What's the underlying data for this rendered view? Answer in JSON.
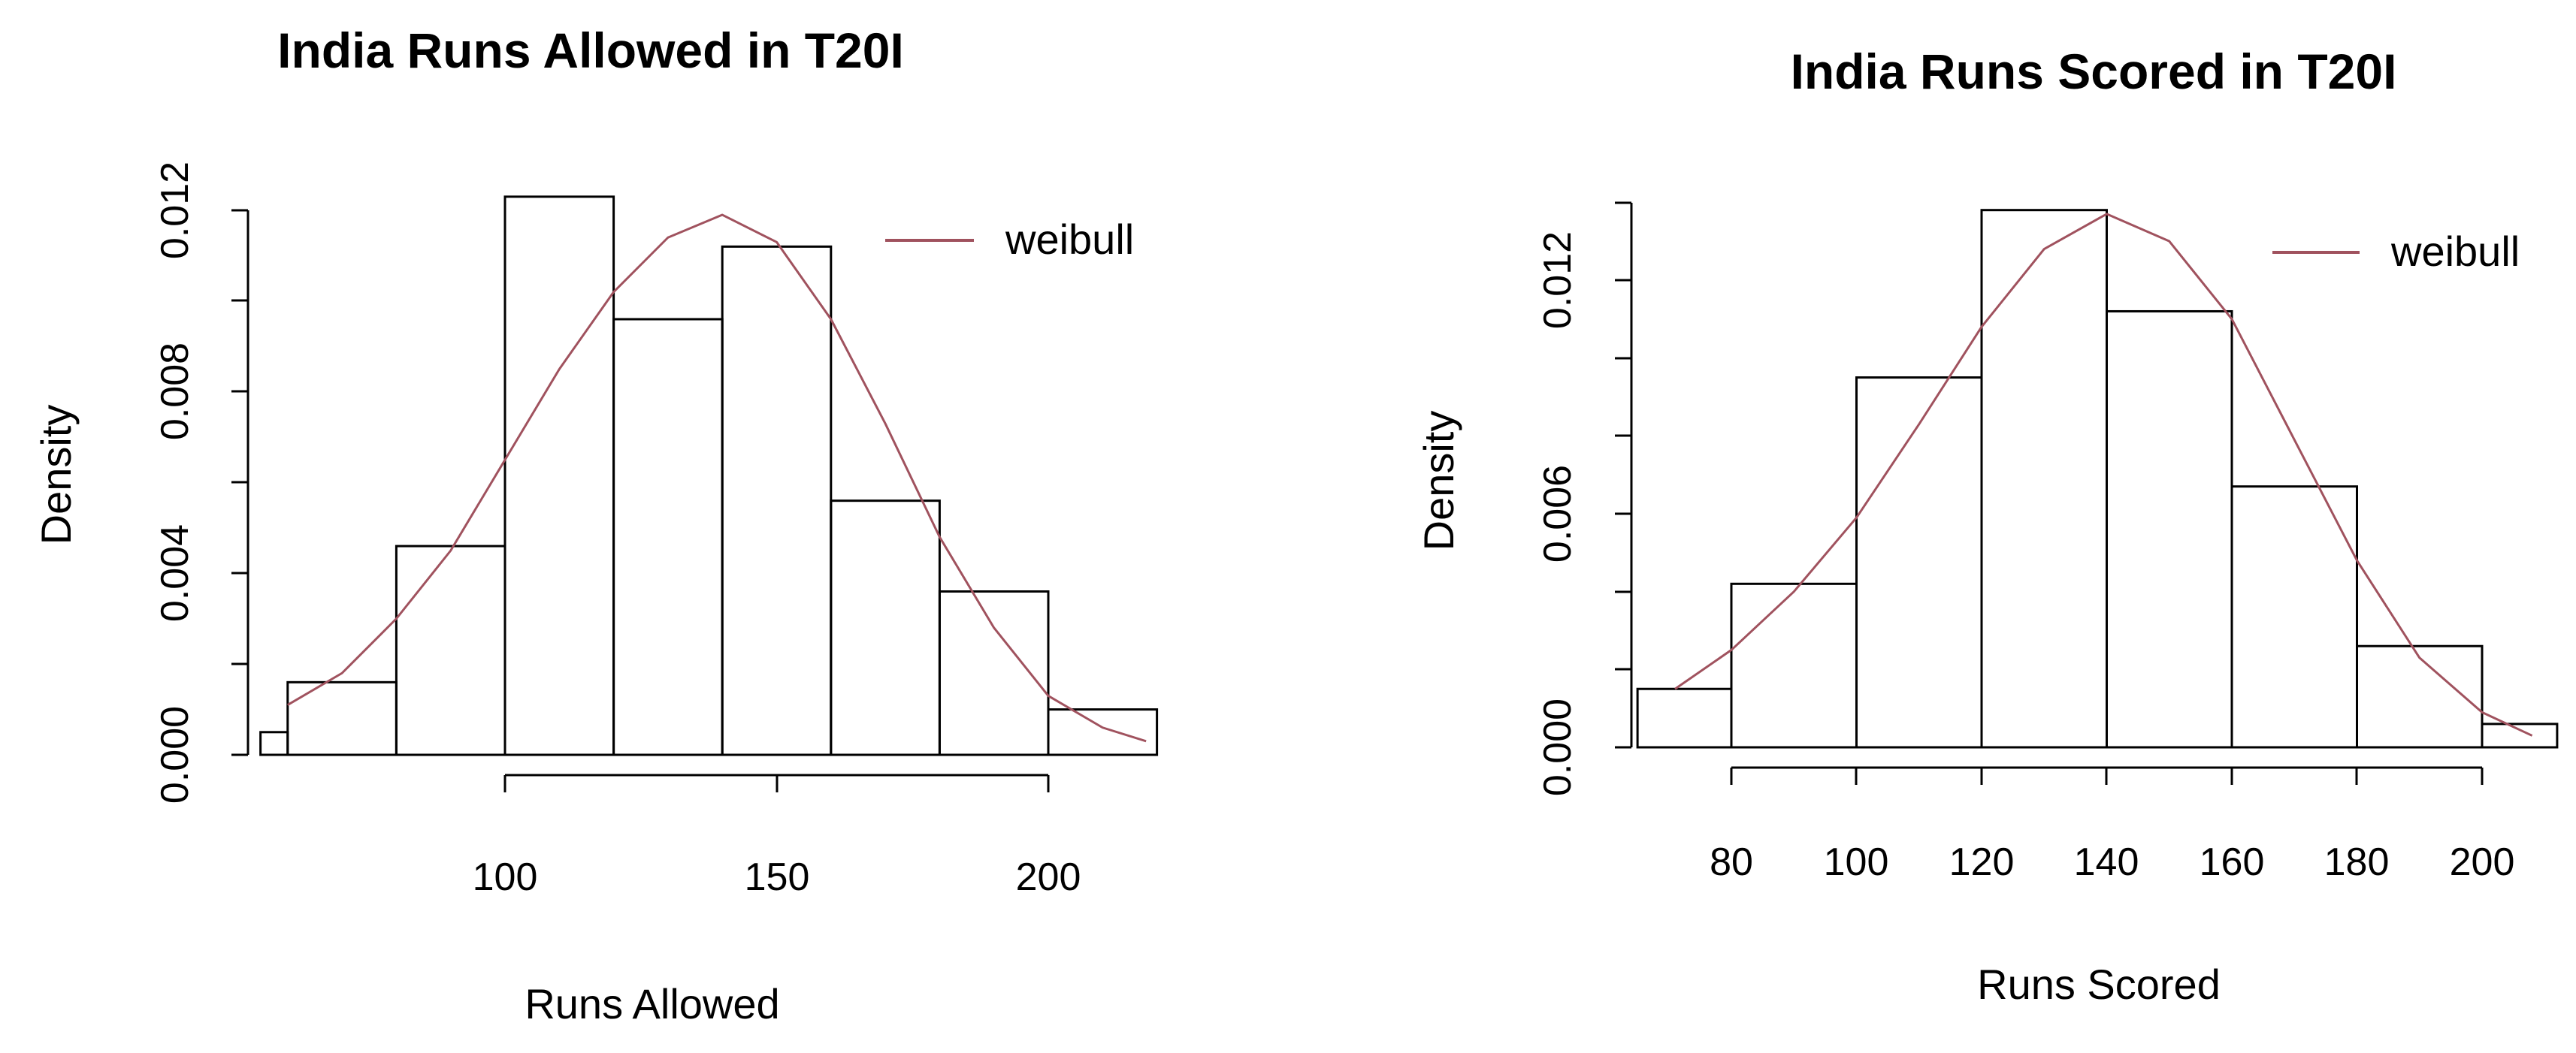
{
  "chart_data": [
    {
      "type": "bar",
      "title": "India Runs Allowed in T20I",
      "xlabel": "Runs Allowed",
      "ylabel": "Density",
      "bins": [
        {
          "from": 55,
          "to": 60,
          "density": 0.0005
        },
        {
          "from": 60,
          "to": 80,
          "density": 0.0016
        },
        {
          "from": 80,
          "to": 100,
          "density": 0.0046
        },
        {
          "from": 100,
          "to": 120,
          "density": 0.0123
        },
        {
          "from": 120,
          "to": 140,
          "density": 0.0096
        },
        {
          "from": 140,
          "to": 160,
          "density": 0.0112
        },
        {
          "from": 160,
          "to": 180,
          "density": 0.0056
        },
        {
          "from": 180,
          "to": 200,
          "density": 0.0036
        },
        {
          "from": 200,
          "to": 220,
          "density": 0.001
        }
      ],
      "series": [
        {
          "name": "weibull",
          "x": [
            60,
            70,
            80,
            90,
            100,
            110,
            120,
            130,
            140,
            150,
            160,
            170,
            180,
            190,
            200,
            210,
            218
          ],
          "y": [
            0.0011,
            0.0018,
            0.003,
            0.0045,
            0.0065,
            0.0085,
            0.0102,
            0.0114,
            0.0119,
            0.0113,
            0.0096,
            0.0073,
            0.0048,
            0.0028,
            0.0013,
            0.0006,
            0.0003
          ]
        }
      ],
      "xticks": [
        "100",
        "150",
        "200"
      ],
      "yticks": [
        "0.000",
        "0.004",
        "0.008",
        "0.012"
      ],
      "xlim": [
        55,
        220
      ],
      "ylim": [
        0,
        0.0125
      ],
      "legend": "top-right",
      "curve_color": "#a0525e",
      "grid": false
    },
    {
      "type": "bar",
      "title": "India Runs Scored in T20I",
      "xlabel": "Runs Scored",
      "ylabel": "Density",
      "bins": [
        {
          "from": 65,
          "to": 80,
          "density": 0.0015
        },
        {
          "from": 80,
          "to": 100,
          "density": 0.0042
        },
        {
          "from": 100,
          "to": 120,
          "density": 0.0095
        },
        {
          "from": 120,
          "to": 140,
          "density": 0.0138
        },
        {
          "from": 140,
          "to": 160,
          "density": 0.0112
        },
        {
          "from": 160,
          "to": 180,
          "density": 0.0067
        },
        {
          "from": 180,
          "to": 200,
          "density": 0.0026
        },
        {
          "from": 200,
          "to": 212,
          "density": 0.0006
        }
      ],
      "series": [
        {
          "name": "weibull",
          "x": [
            71,
            80,
            90,
            100,
            110,
            120,
            130,
            140,
            150,
            160,
            170,
            180,
            190,
            200,
            208
          ],
          "y": [
            0.0015,
            0.0025,
            0.004,
            0.0059,
            0.0083,
            0.0108,
            0.0128,
            0.0137,
            0.013,
            0.011,
            0.0079,
            0.0048,
            0.0023,
            0.0009,
            0.0003
          ]
        }
      ],
      "xticks": [
        "80",
        "100",
        "120",
        "140",
        "160",
        "180",
        "200"
      ],
      "yticks": [
        "0.000",
        "0.006",
        "0.012"
      ],
      "xlim": [
        65,
        212
      ],
      "ylim": [
        0,
        0.014
      ],
      "legend": "top-right",
      "curve_color": "#a0525e",
      "grid": false
    }
  ]
}
